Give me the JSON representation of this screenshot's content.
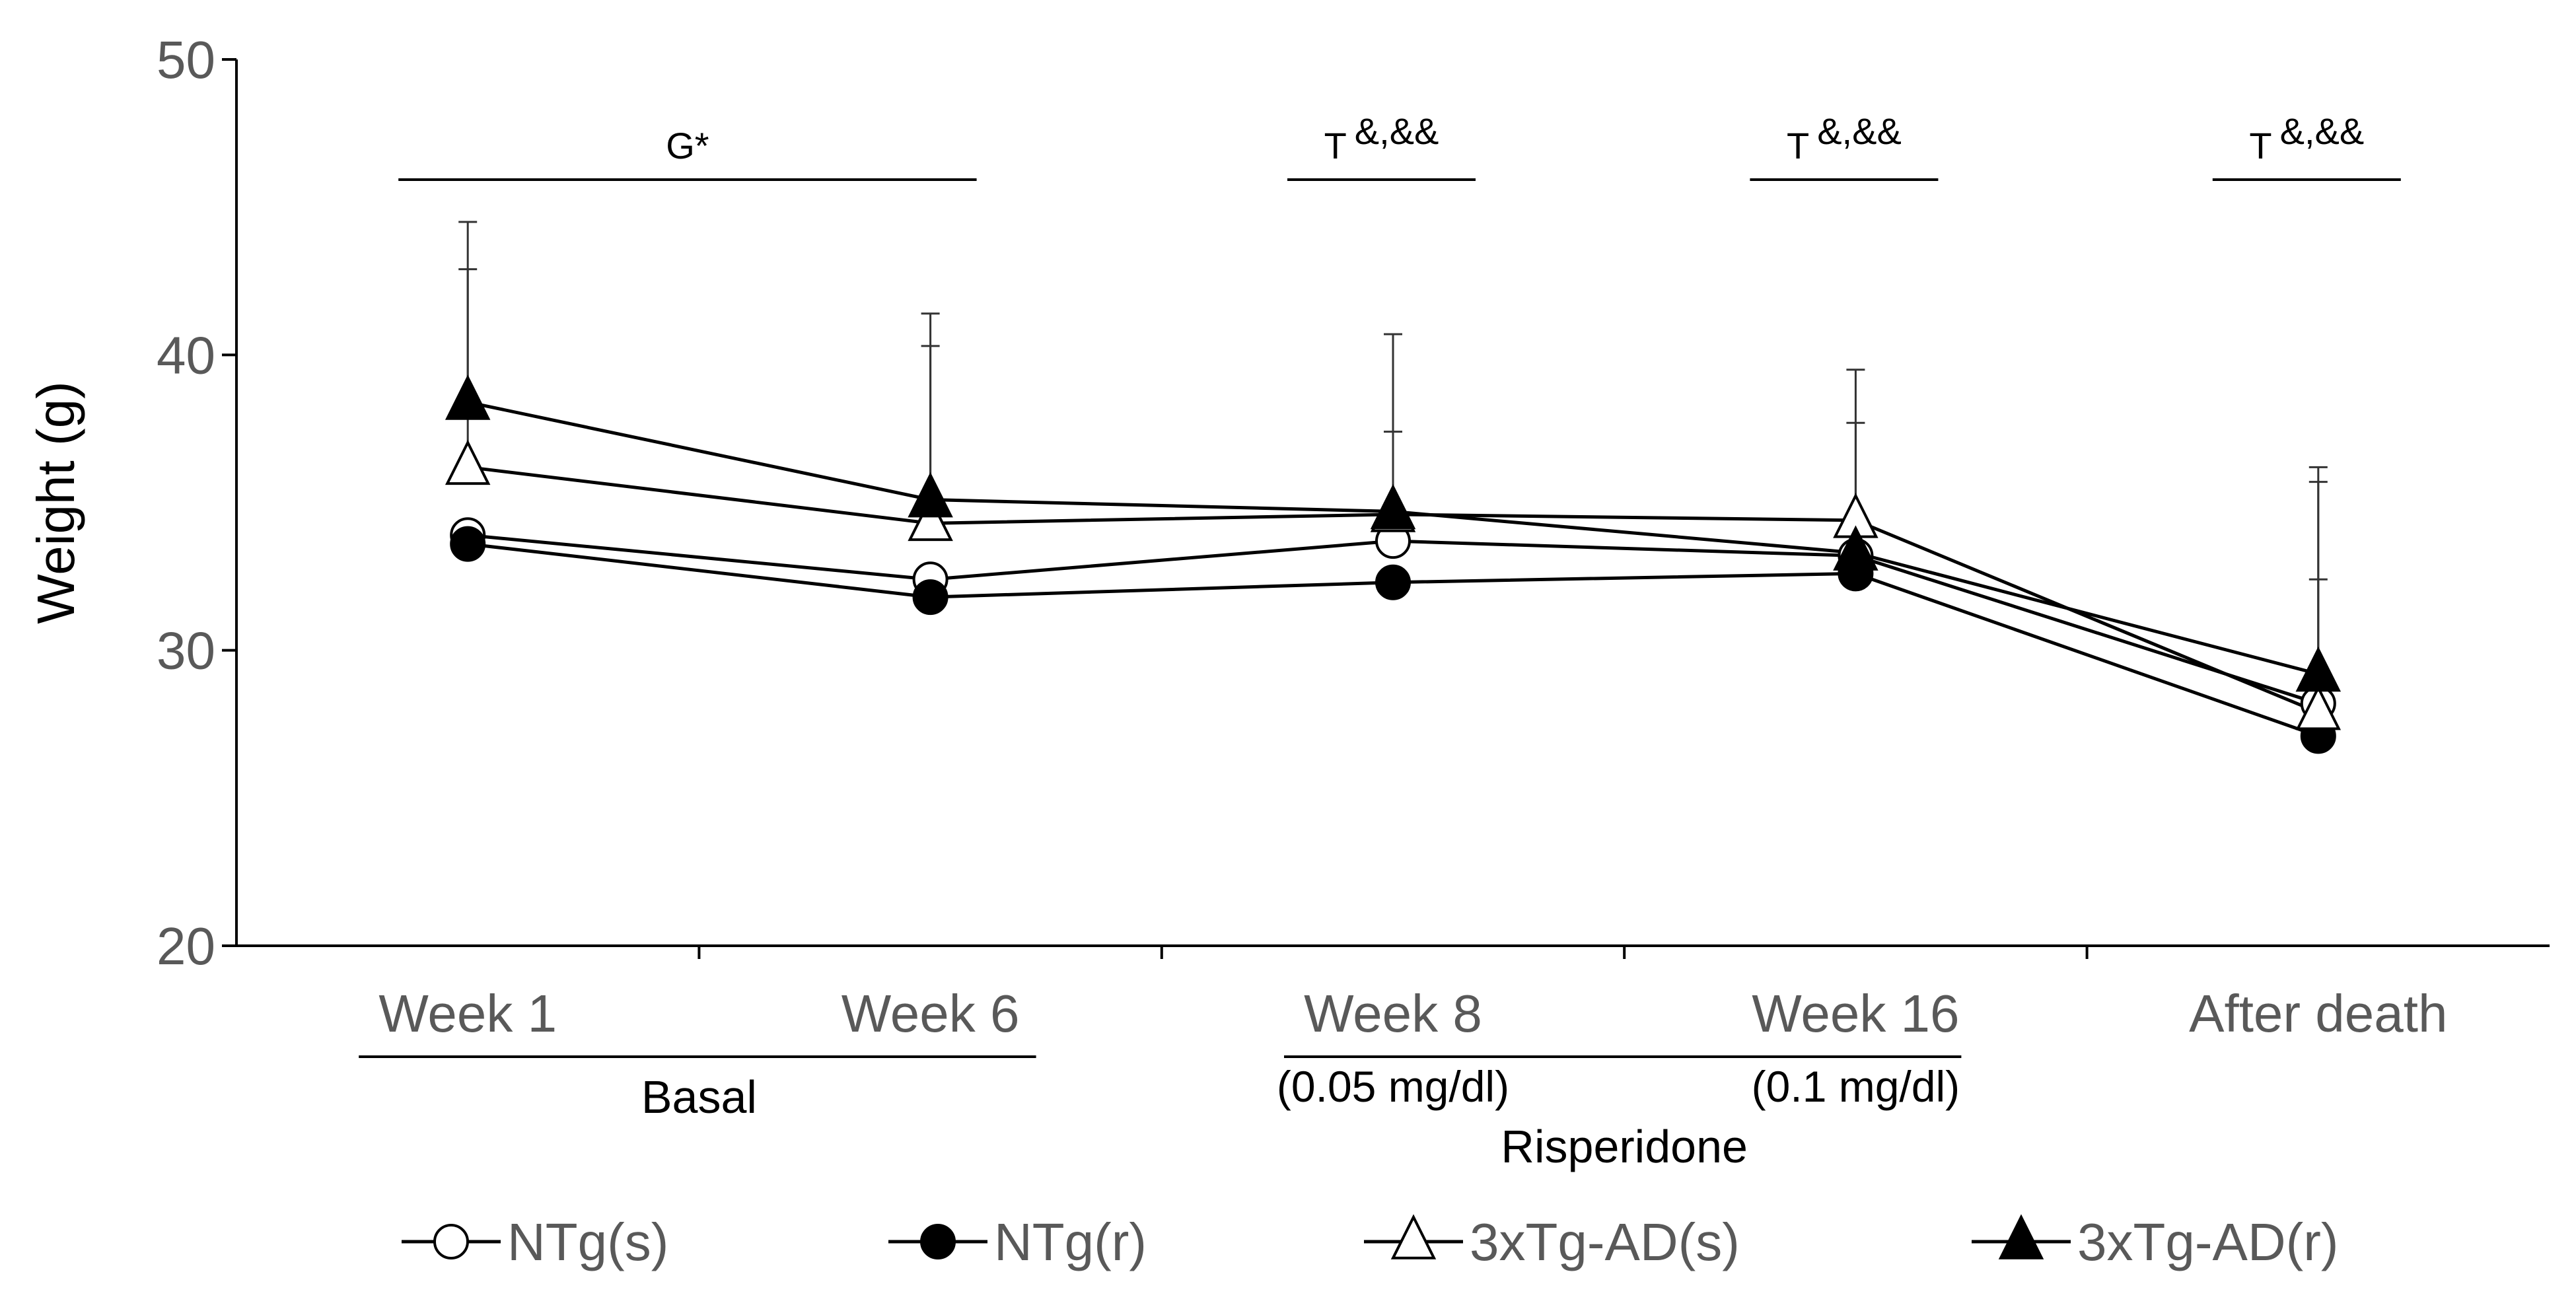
{
  "chart_data": {
    "type": "line",
    "title": "",
    "xlabel": "",
    "ylabel": "Weight (g)",
    "ylim": [
      20,
      50
    ],
    "yticks": [
      20,
      30,
      40,
      50
    ],
    "categories": [
      "Week 1",
      "Week 6",
      "Week 8",
      "Week 16",
      "After death"
    ],
    "series": [
      {
        "name": "NTg(s)",
        "marker": "circle",
        "fill": "open",
        "values": [
          33.9,
          32.4,
          33.7,
          33.2,
          28.2
        ],
        "errors_upper": [
          null,
          null,
          null,
          null,
          null
        ]
      },
      {
        "name": "NTg(r)",
        "marker": "circle",
        "fill": "filled",
        "values": [
          33.6,
          31.8,
          32.3,
          32.6,
          27.1
        ],
        "errors_upper": [
          null,
          null,
          null,
          null,
          32.4
        ]
      },
      {
        "name": "3xTg-AD(s)",
        "marker": "triangle",
        "fill": "open",
        "values": [
          36.2,
          34.3,
          34.6,
          34.4,
          27.9
        ],
        "errors_upper": [
          42.9,
          40.3,
          37.4,
          37.7,
          35.7
        ]
      },
      {
        "name": "3xTg-AD(r)",
        "marker": "triangle",
        "fill": "filled",
        "values": [
          38.4,
          35.1,
          34.7,
          33.3,
          29.2
        ],
        "errors_upper": [
          44.5,
          41.4,
          40.7,
          39.5,
          36.2
        ]
      }
    ],
    "significance": [
      {
        "label": "G*",
        "from": "Week 1",
        "to": "Week 6"
      },
      {
        "label": "T",
        "sup": "&,&&",
        "over": "Week 8"
      },
      {
        "label": "T",
        "sup": "&,&&",
        "over": "Week 16"
      },
      {
        "label": "T",
        "sup": "&,&&",
        "over": "After death"
      }
    ],
    "groups": [
      {
        "label": "Basal",
        "from": "Week 1",
        "to": "Week 6"
      },
      {
        "label": "Risperidone",
        "from": "Week 8",
        "to": "Week 16"
      }
    ],
    "sublabels": [
      {
        "label": "(0.05 mg/dl)",
        "under": "Week 8"
      },
      {
        "label": "(0.1 mg/dl)",
        "under": "Week 16"
      }
    ],
    "legend_position": "bottom"
  }
}
